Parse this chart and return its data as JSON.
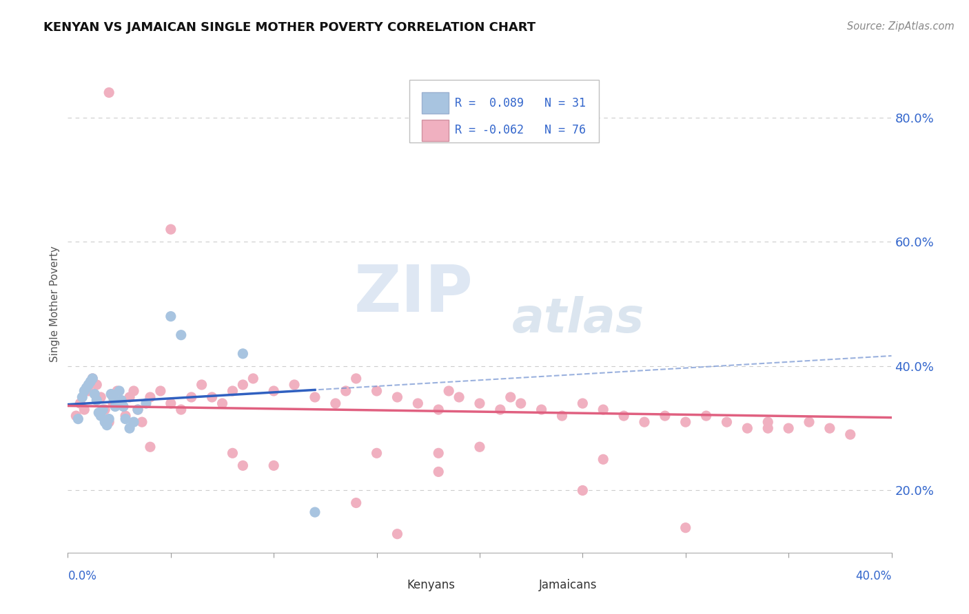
{
  "title": "KENYAN VS JAMAICAN SINGLE MOTHER POVERTY CORRELATION CHART",
  "source": "Source: ZipAtlas.com",
  "ylabel": "Single Mother Poverty",
  "xlim": [
    0.0,
    0.4
  ],
  "ylim": [
    0.1,
    0.9
  ],
  "yticks": [
    0.2,
    0.4,
    0.6,
    0.8
  ],
  "ytick_labels": [
    "20.0%",
    "40.0%",
    "60.0%",
    "80.0%"
  ],
  "kenyan_color": "#a8c4e0",
  "jamaican_color": "#f0b0c0",
  "kenyan_line_color": "#3060c0",
  "jamaican_line_color": "#e06080",
  "kenyan_R": 0.089,
  "kenyan_N": 31,
  "jamaican_R": -0.062,
  "jamaican_N": 76,
  "legend_text_color": "#3366cc",
  "background_color": "#ffffff",
  "watermark_zip": "ZIP",
  "watermark_atlas": "atlas",
  "kenyan_x": [
    0.005,
    0.007,
    0.008,
    0.009,
    0.01,
    0.011,
    0.012,
    0.013,
    0.014,
    0.015,
    0.016,
    0.017,
    0.018,
    0.019,
    0.02,
    0.021,
    0.022,
    0.023,
    0.024,
    0.025,
    0.026,
    0.027,
    0.028,
    0.03,
    0.032,
    0.034,
    0.038,
    0.05,
    0.055,
    0.085,
    0.12
  ],
  "kenyan_y": [
    0.315,
    0.35,
    0.36,
    0.365,
    0.37,
    0.375,
    0.38,
    0.355,
    0.345,
    0.325,
    0.32,
    0.33,
    0.31,
    0.305,
    0.315,
    0.355,
    0.35,
    0.335,
    0.34,
    0.36,
    0.345,
    0.335,
    0.315,
    0.3,
    0.31,
    0.33,
    0.34,
    0.48,
    0.45,
    0.42,
    0.165
  ],
  "jamaican_x": [
    0.004,
    0.006,
    0.008,
    0.01,
    0.012,
    0.014,
    0.016,
    0.018,
    0.02,
    0.022,
    0.024,
    0.026,
    0.028,
    0.03,
    0.032,
    0.034,
    0.036,
    0.04,
    0.045,
    0.05,
    0.055,
    0.06,
    0.065,
    0.07,
    0.075,
    0.08,
    0.085,
    0.09,
    0.1,
    0.11,
    0.12,
    0.13,
    0.135,
    0.14,
    0.15,
    0.16,
    0.17,
    0.18,
    0.185,
    0.19,
    0.2,
    0.21,
    0.215,
    0.22,
    0.23,
    0.24,
    0.25,
    0.26,
    0.27,
    0.28,
    0.29,
    0.3,
    0.31,
    0.32,
    0.33,
    0.34,
    0.35,
    0.36,
    0.37,
    0.38,
    0.05,
    0.1,
    0.15,
    0.2,
    0.25,
    0.02,
    0.04,
    0.08,
    0.16,
    0.3,
    0.085,
    0.18,
    0.14,
    0.26,
    0.18,
    0.34
  ],
  "jamaican_y": [
    0.32,
    0.34,
    0.33,
    0.36,
    0.38,
    0.37,
    0.35,
    0.33,
    0.31,
    0.34,
    0.36,
    0.34,
    0.32,
    0.35,
    0.36,
    0.33,
    0.31,
    0.35,
    0.36,
    0.34,
    0.33,
    0.35,
    0.37,
    0.35,
    0.34,
    0.36,
    0.37,
    0.38,
    0.36,
    0.37,
    0.35,
    0.34,
    0.36,
    0.38,
    0.36,
    0.35,
    0.34,
    0.33,
    0.36,
    0.35,
    0.34,
    0.33,
    0.35,
    0.34,
    0.33,
    0.32,
    0.34,
    0.33,
    0.32,
    0.31,
    0.32,
    0.31,
    0.32,
    0.31,
    0.3,
    0.31,
    0.3,
    0.31,
    0.3,
    0.29,
    0.62,
    0.24,
    0.26,
    0.27,
    0.2,
    0.84,
    0.27,
    0.26,
    0.13,
    0.14,
    0.24,
    0.23,
    0.18,
    0.25,
    0.26,
    0.3
  ]
}
